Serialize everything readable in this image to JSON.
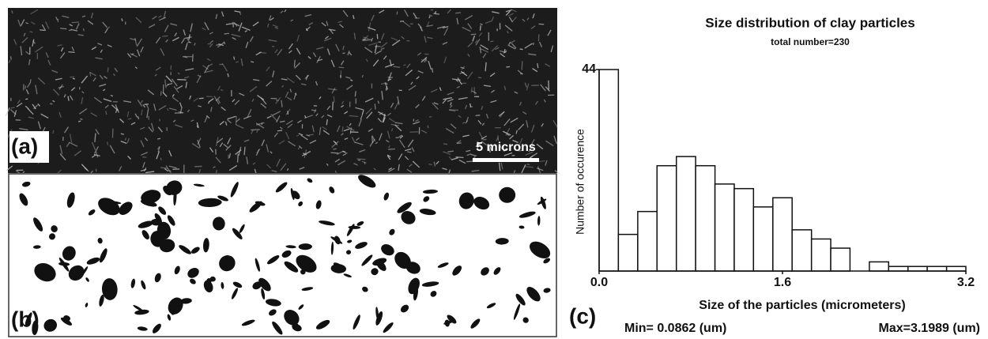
{
  "panels": {
    "a": {
      "label": "(a)",
      "scale_bar": "5 microns"
    },
    "b": {
      "label": "(b)"
    }
  },
  "chart_data": {
    "type": "histogram",
    "title": "Size distribution of clay particles",
    "subtitle": "total number=230",
    "x_label": "Size of the particles (micrometers)",
    "y_label": "Number of occurence",
    "panel_label": "(c)",
    "annotations": [
      "Min= 0.0862 (um)",
      "Max=3.1989 (um)"
    ],
    "bins": [
      0,
      0.168,
      0.337,
      0.505,
      0.674,
      0.842,
      1.011,
      1.179,
      1.347,
      1.516,
      1.684,
      1.853,
      2.021,
      2.189,
      2.358,
      2.526,
      2.695,
      2.863,
      3.032,
      3.2
    ],
    "values": [
      44,
      8,
      13,
      23,
      25,
      23,
      19,
      18,
      14,
      16,
      9,
      7,
      5,
      0,
      2,
      1,
      1,
      1,
      1
    ],
    "color": "#ffffff",
    "xlim": [
      0,
      3.2
    ],
    "ylim": [
      0,
      44
    ],
    "xticks": [
      {
        "value": 0,
        "label": "0.0"
      },
      1.6,
      3.2
    ],
    "yticks": [
      44
    ]
  }
}
